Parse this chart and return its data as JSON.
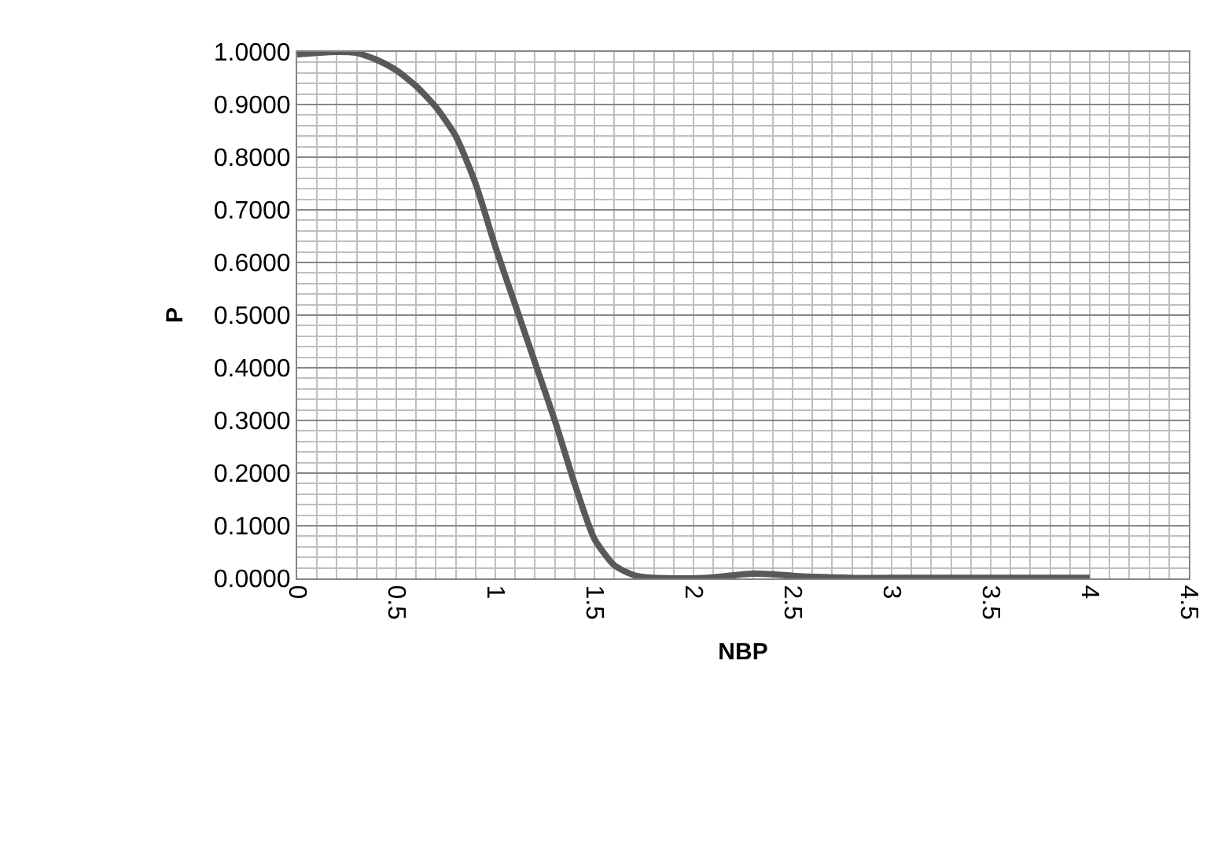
{
  "chart_data": {
    "type": "line",
    "xlabel": "NBP",
    "ylabel": "P",
    "x": [
      0,
      0.1,
      0.2,
      0.3,
      0.4,
      0.5,
      0.6,
      0.7,
      0.8,
      0.9,
      1.0,
      1.1,
      1.2,
      1.3,
      1.4,
      1.5,
      1.6,
      1.7,
      1.8,
      1.9,
      2.0,
      2.1,
      2.2,
      2.3,
      2.4,
      2.5,
      2.6,
      2.7,
      2.8,
      3.0,
      3.5,
      4.0
    ],
    "series": [
      {
        "color": "#595959",
        "values": [
          0.995,
          0.998,
          1.0,
          0.998,
          0.985,
          0.965,
          0.935,
          0.895,
          0.84,
          0.75,
          0.63,
          0.52,
          0.41,
          0.3,
          0.18,
          0.075,
          0.025,
          0.006,
          0.001,
          0,
          0,
          0.002,
          0.006,
          0.009,
          0.008,
          0.005,
          0.003,
          0.002,
          0.001,
          0.001,
          0.001,
          0.001
        ]
      }
    ],
    "xlim": [
      0,
      4.5
    ],
    "xticks": [
      0,
      0.5,
      1,
      1.5,
      2,
      2.5,
      3,
      3.5,
      4,
      4.5
    ],
    "ylim": [
      0,
      1
    ],
    "yticks": [
      {
        "value": 0,
        "label": "0.0000"
      },
      {
        "value": 0.1,
        "label": "0.1000"
      },
      {
        "value": 0.2,
        "label": "0.2000"
      },
      {
        "value": 0.3,
        "label": "0.3000"
      },
      {
        "value": 0.4,
        "label": "0.4000"
      },
      {
        "value": 0.5,
        "label": "0.5000"
      },
      {
        "value": 0.6,
        "label": "0.6000"
      },
      {
        "value": 0.7,
        "label": "0.7000"
      },
      {
        "value": 0.8,
        "label": "0.8000"
      },
      {
        "value": 0.9,
        "label": "0.9000"
      },
      {
        "value": 1,
        "label": "1.0000"
      }
    ],
    "grid": true,
    "marker": "none",
    "line_style": "solid"
  }
}
